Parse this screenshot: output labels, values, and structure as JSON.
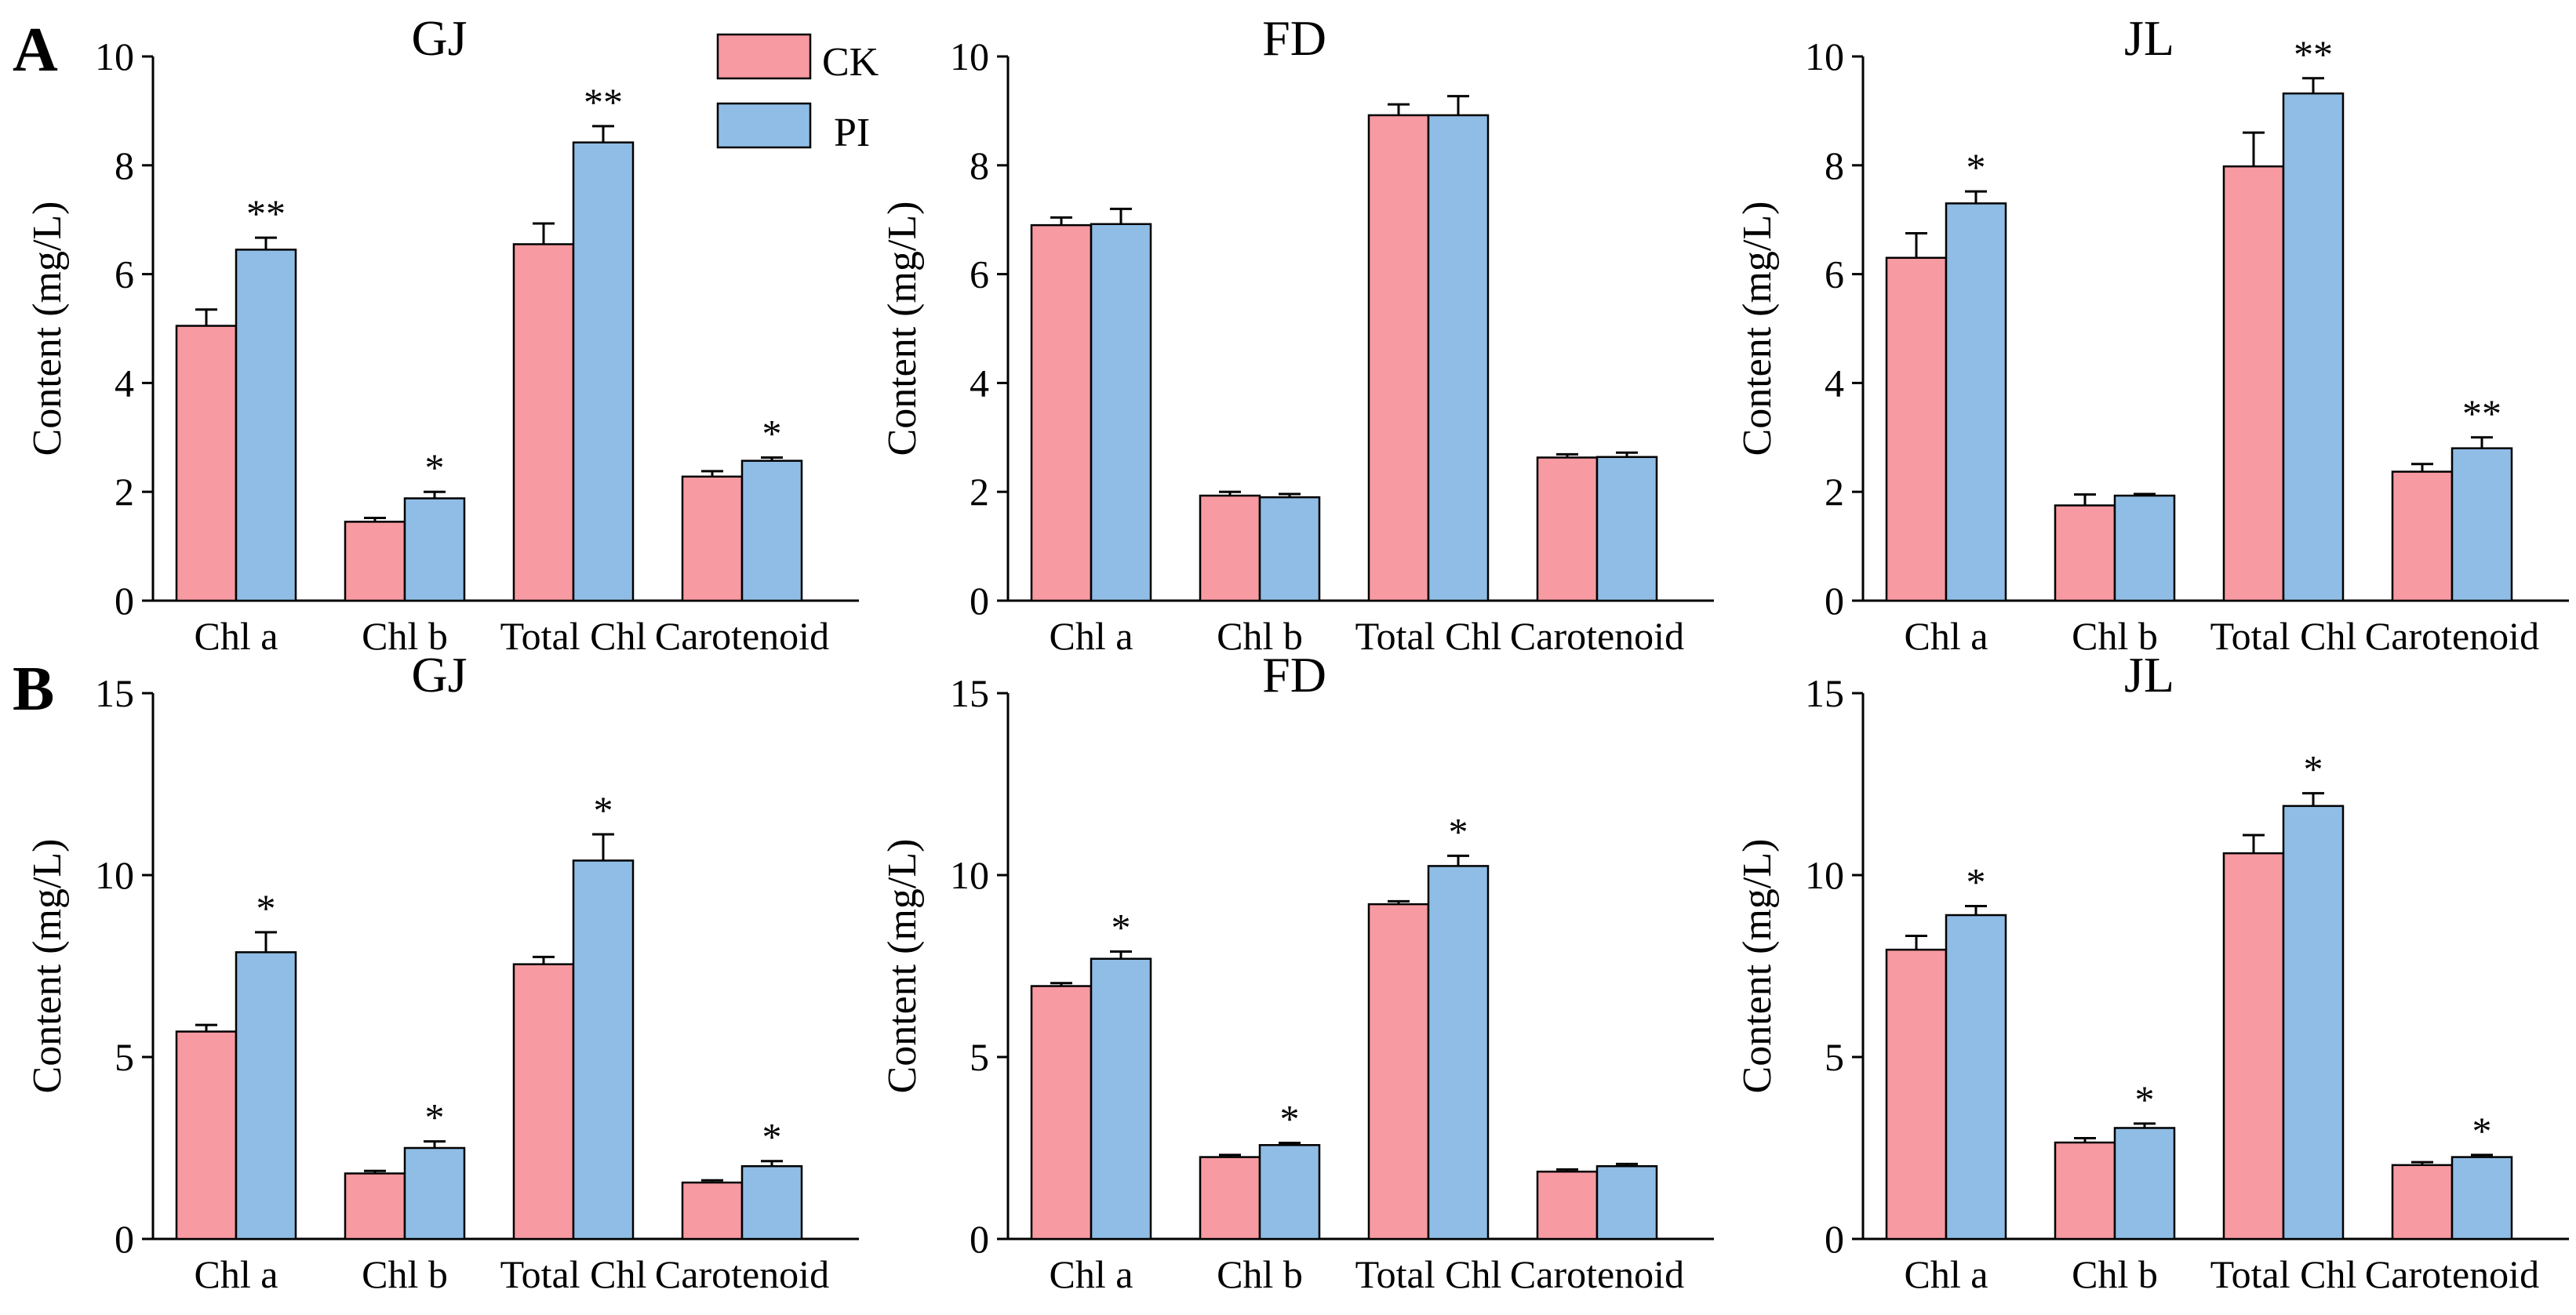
{
  "colors": {
    "ck": "#f89aa2",
    "pi": "#8fbde6"
  },
  "legend": {
    "ck": "CK",
    "pi": "PI"
  },
  "panels": [
    {
      "label": "A"
    },
    {
      "label": "B"
    }
  ],
  "chart_data": [
    {
      "type": "bar",
      "panel": "A",
      "title": "GJ",
      "ylabel": "Content (mg/L)",
      "ylim": [
        0,
        10
      ],
      "yticks": [
        0,
        2,
        4,
        6,
        8,
        10
      ],
      "categories": [
        "Chl a",
        "Chl b",
        "Total Chl",
        "Carotenoid"
      ],
      "series": [
        {
          "name": "CK",
          "values": [
            5.05,
            1.45,
            6.55,
            2.28
          ],
          "errors": [
            0.3,
            0.07,
            0.38,
            0.1
          ]
        },
        {
          "name": "PI",
          "values": [
            6.45,
            1.88,
            8.42,
            2.57
          ],
          "errors": [
            0.22,
            0.12,
            0.3,
            0.06
          ],
          "significance": [
            "**",
            "*",
            "**",
            "*"
          ]
        }
      ]
    },
    {
      "type": "bar",
      "panel": "A",
      "title": "FD",
      "ylabel": "Content (mg/L)",
      "ylim": [
        0,
        10
      ],
      "yticks": [
        0,
        2,
        4,
        6,
        8,
        10
      ],
      "categories": [
        "Chl a",
        "Chl b",
        "Total Chl",
        "Carotenoid"
      ],
      "series": [
        {
          "name": "CK",
          "values": [
            6.9,
            1.93,
            8.92,
            2.63
          ],
          "errors": [
            0.14,
            0.07,
            0.2,
            0.06
          ]
        },
        {
          "name": "PI",
          "values": [
            6.92,
            1.9,
            8.92,
            2.64
          ],
          "errors": [
            0.28,
            0.06,
            0.35,
            0.08
          ],
          "significance": [
            "",
            "",
            "",
            ""
          ]
        }
      ]
    },
    {
      "type": "bar",
      "panel": "A",
      "title": "JL",
      "ylabel": "Content (mg/L)",
      "ylim": [
        0,
        10
      ],
      "yticks": [
        0,
        2,
        4,
        6,
        8,
        10
      ],
      "categories": [
        "Chl a",
        "Chl b",
        "Total Chl",
        "Carotenoid"
      ],
      "series": [
        {
          "name": "CK",
          "values": [
            6.3,
            1.75,
            7.98,
            2.37
          ],
          "errors": [
            0.45,
            0.2,
            0.62,
            0.14
          ]
        },
        {
          "name": "PI",
          "values": [
            7.3,
            1.93,
            9.32,
            2.8
          ],
          "errors": [
            0.22,
            0.03,
            0.28,
            0.2
          ],
          "significance": [
            "*",
            "",
            "**",
            "**"
          ]
        }
      ]
    },
    {
      "type": "bar",
      "panel": "B",
      "title": "GJ",
      "ylabel": "Content (mg/L)",
      "ylim": [
        0,
        15
      ],
      "yticks": [
        0,
        5,
        10,
        15
      ],
      "categories": [
        "Chl a",
        "Chl b",
        "Total Chl",
        "Carotenoid"
      ],
      "series": [
        {
          "name": "CK",
          "values": [
            5.7,
            1.8,
            7.55,
            1.55
          ],
          "errors": [
            0.18,
            0.07,
            0.2,
            0.06
          ]
        },
        {
          "name": "PI",
          "values": [
            7.88,
            2.5,
            10.4,
            2.0
          ],
          "errors": [
            0.55,
            0.18,
            0.72,
            0.14
          ],
          "significance": [
            "*",
            "*",
            "*",
            "*"
          ]
        }
      ]
    },
    {
      "type": "bar",
      "panel": "B",
      "title": "FD",
      "ylabel": "Content (mg/L)",
      "ylim": [
        0,
        15
      ],
      "yticks": [
        0,
        5,
        10,
        15
      ],
      "categories": [
        "Chl a",
        "Chl b",
        "Total Chl",
        "Carotenoid"
      ],
      "series": [
        {
          "name": "CK",
          "values": [
            6.95,
            2.25,
            9.2,
            1.85
          ],
          "errors": [
            0.08,
            0.06,
            0.08,
            0.06
          ]
        },
        {
          "name": "PI",
          "values": [
            7.7,
            2.58,
            10.25,
            2.0
          ],
          "errors": [
            0.2,
            0.06,
            0.28,
            0.06
          ],
          "significance": [
            "*",
            "*",
            "*",
            ""
          ]
        }
      ]
    },
    {
      "type": "bar",
      "panel": "B",
      "title": "JL",
      "ylabel": "Content (mg/L)",
      "ylim": [
        0,
        15
      ],
      "yticks": [
        0,
        5,
        10,
        15
      ],
      "categories": [
        "Chl a",
        "Chl b",
        "Total Chl",
        "Carotenoid"
      ],
      "series": [
        {
          "name": "CK",
          "values": [
            7.95,
            2.65,
            10.6,
            2.03
          ],
          "errors": [
            0.38,
            0.12,
            0.5,
            0.08
          ]
        },
        {
          "name": "PI",
          "values": [
            8.9,
            3.05,
            11.9,
            2.25
          ],
          "errors": [
            0.25,
            0.12,
            0.35,
            0.06
          ],
          "significance": [
            "*",
            "*",
            "*",
            "*"
          ]
        }
      ]
    }
  ]
}
